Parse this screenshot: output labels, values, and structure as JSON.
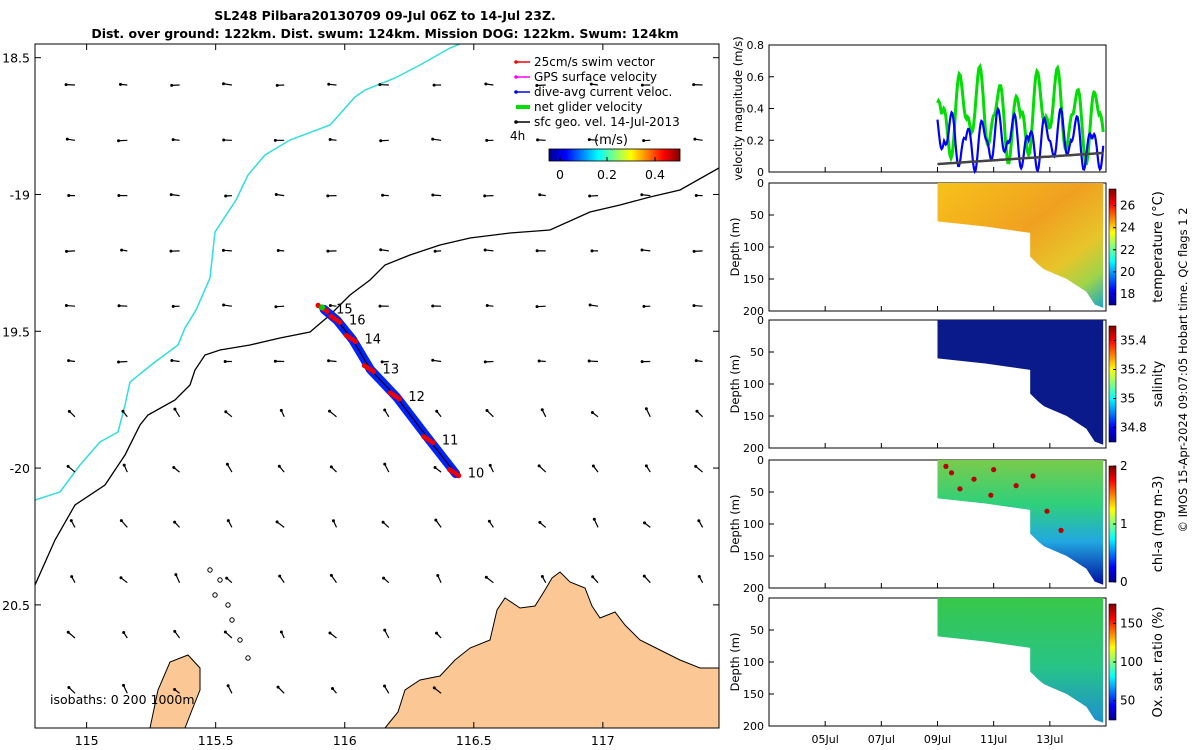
{
  "header": {
    "title_line1": "SL248 Pilbara20130709 09-Jul 06Z to 14-Jul 23Z.",
    "title_line2": "Dist. over ground: 122km. Dist. swum: 124km. Mission DOG: 122km. Swum: 124km"
  },
  "map": {
    "legend": [
      {
        "label": "25cm/s swim vector",
        "color": "#ff0000",
        "style": "arrow"
      },
      {
        "label": "GPS surface velocity",
        "color": "#ff00ff",
        "style": "arrow"
      },
      {
        "label": "dive-avg current veloc.",
        "color": "#0000ff",
        "style": "arrow"
      },
      {
        "label": "net glider velocity",
        "color": "#00dd00",
        "style": "thick"
      },
      {
        "label": "sfc geo. vel. 14-Jul-2013",
        "color": "#000000",
        "style": "arrow"
      }
    ],
    "legend_4h": "4h",
    "colorbar_title": "(m/s)",
    "colorbar_ticks": [
      "0",
      "0.2",
      "0.4"
    ],
    "isobaths_text": "isobaths: 0   200  1000m",
    "x_ticks": [
      115,
      115.5,
      116,
      116.5,
      117
    ],
    "y_ticks": [
      -18.5,
      -19,
      -19.5,
      -20,
      -20.5
    ],
    "y_tick_labels": [
      "18.5",
      "-19",
      "19.5",
      "-20",
      "20.5"
    ],
    "track_labels": [
      "15",
      "16",
      "14",
      "13",
      "12",
      "11",
      "10"
    ],
    "colors": {
      "land": "#fbc895",
      "isobath_200": "#000000",
      "isobath_1000": "#33dddd"
    }
  },
  "right_panels": {
    "date_ticks": [
      "05Jul",
      "07Jul",
      "09Jul",
      "11Jul",
      "13Jul"
    ],
    "velocity_ylabel": "velocity magnitude (m/s)",
    "velocity_ticks": [
      "0",
      "0.2",
      "0.4",
      "0.6",
      "0.8"
    ],
    "depth_ylabel": "Depth (m)",
    "depth_ticks": [
      "0",
      "50",
      "100",
      "150",
      "200"
    ],
    "panels": [
      {
        "label": "temperature (°C)",
        "ticks": [
          "18",
          "20",
          "22",
          "24",
          "26"
        ]
      },
      {
        "label": "salinity",
        "ticks": [
          "34.8",
          "35",
          "35.2",
          "35.4"
        ]
      },
      {
        "label": "chl-a (mg m-3)",
        "ticks": [
          "0",
          "1",
          "2"
        ]
      },
      {
        "label": "Ox. sat. ratio (%)",
        "ticks": [
          "50",
          "100",
          "150"
        ]
      }
    ],
    "credit": "© IMOS 15-Apr-2024 09:07:05 Hobart time. QC flags 1  2"
  },
  "chart_data": [
    {
      "type": "scatter",
      "xlim": [
        114.8,
        117.45
      ],
      "ylim": [
        -20.95,
        -18.45
      ],
      "x_ticks": [
        115,
        115.5,
        116,
        116.5,
        117
      ],
      "glider_track": [
        {
          "x": 116.43,
          "y": -20.02,
          "label": "10"
        },
        {
          "x": 116.33,
          "y": -19.9,
          "label": "11"
        },
        {
          "x": 116.2,
          "y": -19.74,
          "label": "12"
        },
        {
          "x": 116.1,
          "y": -19.64,
          "label": "13"
        },
        {
          "x": 116.03,
          "y": -19.53,
          "label": "14"
        },
        {
          "x": 115.97,
          "y": -19.46,
          "label": "16"
        },
        {
          "x": 115.92,
          "y": -19.42,
          "label": "15"
        }
      ]
    },
    {
      "type": "line",
      "ylabel": "velocity magnitude (m/s)",
      "ylim": [
        0,
        0.8
      ],
      "x_range": [
        "03Jul",
        "15Jul"
      ],
      "series": [
        {
          "name": "net glider velocity",
          "color": "#00dd00",
          "range": [
            0.05,
            0.67
          ]
        },
        {
          "name": "dive-avg current veloc.",
          "color": "#0000ff",
          "range": [
            0.0,
            0.4
          ]
        },
        {
          "name": "sfc geo. vel. 14-Jul-2013",
          "color": "#444444",
          "range": [
            0.05,
            0.12
          ]
        }
      ]
    },
    {
      "type": "heatmap",
      "ylabel": "Depth (m)",
      "colorbar": "temperature (°C)",
      "clim": [
        17,
        27.5
      ],
      "ylim": [
        200,
        0
      ]
    },
    {
      "type": "heatmap",
      "ylabel": "Depth (m)",
      "colorbar": "salinity",
      "clim": [
        34.7,
        35.5
      ],
      "ylim": [
        200,
        0
      ]
    },
    {
      "type": "heatmap",
      "ylabel": "Depth (m)",
      "colorbar": "chl-a (mg m-3)",
      "clim": [
        0,
        2
      ],
      "ylim": [
        200,
        0
      ]
    },
    {
      "type": "heatmap",
      "ylabel": "Depth (m)",
      "colorbar": "Ox. sat. ratio (%)",
      "clim": [
        25,
        175
      ],
      "ylim": [
        200,
        0
      ]
    }
  ]
}
